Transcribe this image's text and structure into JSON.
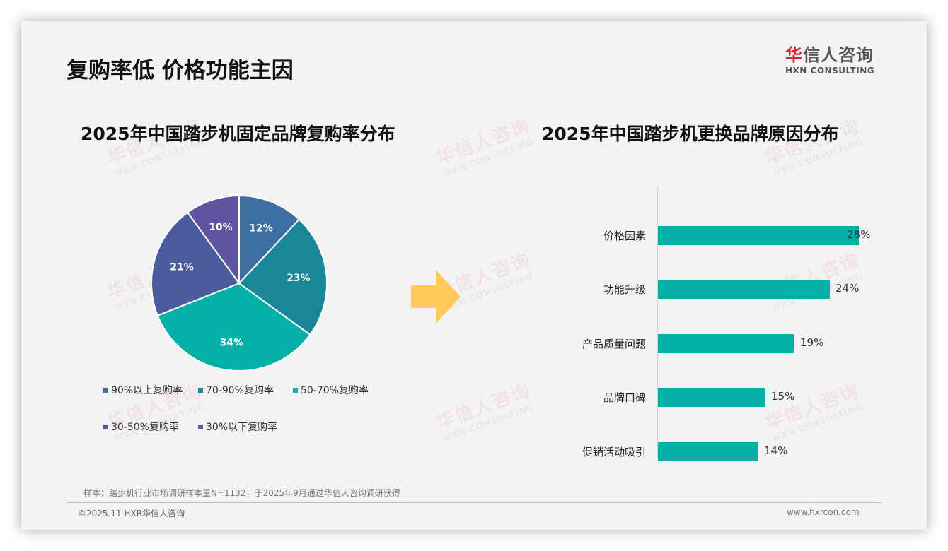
{
  "header": {
    "title": "复购率低 价格功能主因",
    "logo": {
      "cn_first": "华",
      "cn_rest": "信人咨询",
      "en": "HXN CONSULTING"
    }
  },
  "watermark": {
    "cn": "华信人咨询",
    "en": "HXN CONSULTING"
  },
  "colors": {
    "accent_teal": "#05b0a6",
    "arrow": "#ffc95c",
    "logo_red": "#d7262b",
    "pie": [
      "#3d6fa3",
      "#1a8799",
      "#05b0a6",
      "#4a5c9e",
      "#5e54a0"
    ]
  },
  "left_chart": {
    "title": "2025年中国踏步机固定品牌复购率分布",
    "legend": [
      "90%以上复购率",
      "70-90%复购率",
      "50-70%复购率",
      "30-50%复购率",
      "30%以下复购率"
    ]
  },
  "right_chart": {
    "title": "2025年中国踏步机更换品牌原因分布",
    "items": [
      {
        "label": "价格因素",
        "value": "28%"
      },
      {
        "label": "功能升级",
        "value": "24%"
      },
      {
        "label": "产品质量问题",
        "value": "19%"
      },
      {
        "label": "品牌口碑",
        "value": "15%"
      },
      {
        "label": "促销活动吸引",
        "value": "14%"
      }
    ]
  },
  "footer": {
    "note": "样本：踏步机行业市场调研样本量N=1132，于2025年9月通过华信人咨询调研获得",
    "copyright": "©2025.11 HXR华信人咨询",
    "website": "www.hxrcon.com"
  },
  "chart_data": [
    {
      "type": "pie",
      "title": "2025年中国踏步机固定品牌复购率分布",
      "categories": [
        "90%以上复购率",
        "70-90%复购率",
        "50-70%复购率",
        "30-50%复购率",
        "30%以下复购率"
      ],
      "values": [
        12,
        23,
        34,
        21,
        10
      ],
      "unit": "%",
      "legend_position": "bottom"
    },
    {
      "type": "bar",
      "orientation": "horizontal",
      "title": "2025年中国踏步机更换品牌原因分布",
      "categories": [
        "价格因素",
        "功能升级",
        "产品质量问题",
        "品牌口碑",
        "促销活动吸引"
      ],
      "values": [
        28,
        24,
        19,
        15,
        14
      ],
      "unit": "%",
      "xlabel": "",
      "ylabel": "",
      "grid": false
    }
  ]
}
